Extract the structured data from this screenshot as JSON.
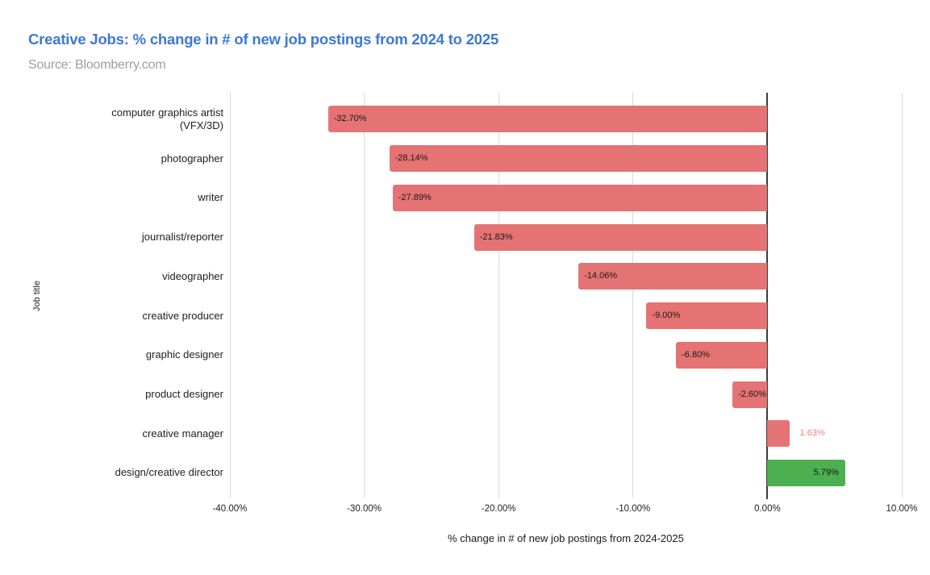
{
  "title": "Creative Jobs: % change in # of new job postings from 2024 to 2025",
  "source": "Source: Bloomberry.com",
  "colors": {
    "title": "#3d78d8",
    "source": "#9e9e9e",
    "negative_bar": "#e57373",
    "highlight_bar": "#4caf50",
    "outside_label": "#e8807f",
    "inside_label": "#1a1a1a",
    "gridline": "#d9d9d9",
    "zero_line": "#3c3c3c"
  },
  "chart_data": {
    "type": "bar",
    "orientation": "horizontal",
    "title": "Creative Jobs: % change in # of new job postings from 2024 to 2025",
    "subtitle": "Source: Bloomberry.com",
    "xlabel": "% change in # of new job postings from 2024-2025",
    "ylabel": "Job title",
    "xlim": [
      -40,
      10
    ],
    "grid": true,
    "legend": false,
    "xticks": {
      "values": [
        -40,
        -30,
        -20,
        -10,
        0,
        10
      ],
      "labels": [
        "-40.00%",
        "-30.00%",
        "-20.00%",
        "-10.00%",
        "0.00%",
        "10.00%"
      ]
    },
    "categories": [
      "computer graphics artist (VFX/3D)",
      "photographer",
      "writer",
      "journalist/reporter",
      "videographer",
      "creative producer",
      "graphic designer",
      "product designer",
      "creative manager",
      "design/creative director"
    ],
    "values": [
      -32.7,
      -28.14,
      -27.89,
      -21.83,
      -14.06,
      -9.0,
      -6.8,
      -2.6,
      1.63,
      5.79
    ],
    "bars": [
      {
        "category": "computer graphics artist (VFX/3D)",
        "value": -32.7,
        "label": "-32.70%",
        "color": "#e57373",
        "label_pos": "inside-start",
        "label_color": "#1a1a1a"
      },
      {
        "category": "photographer",
        "value": -28.14,
        "label": "-28.14%",
        "color": "#e57373",
        "label_pos": "inside-start",
        "label_color": "#1a1a1a"
      },
      {
        "category": "writer",
        "value": -27.89,
        "label": "-27.89%",
        "color": "#e57373",
        "label_pos": "inside-start",
        "label_color": "#1a1a1a"
      },
      {
        "category": "journalist/reporter",
        "value": -21.83,
        "label": "-21.83%",
        "color": "#e57373",
        "label_pos": "inside-start",
        "label_color": "#1a1a1a"
      },
      {
        "category": "videographer",
        "value": -14.06,
        "label": "-14.06%",
        "color": "#e57373",
        "label_pos": "inside-start",
        "label_color": "#1a1a1a"
      },
      {
        "category": "creative producer",
        "value": -9.0,
        "label": "-9.00%",
        "color": "#e57373",
        "label_pos": "inside-start",
        "label_color": "#1a1a1a"
      },
      {
        "category": "graphic designer",
        "value": -6.8,
        "label": "-6.80%",
        "color": "#e57373",
        "label_pos": "inside-start",
        "label_color": "#1a1a1a"
      },
      {
        "category": "product designer",
        "value": -2.6,
        "label": "-2.60%",
        "color": "#e57373",
        "label_pos": "inside-start",
        "label_color": "#1a1a1a"
      },
      {
        "category": "creative manager",
        "value": 1.63,
        "label": "1.63%",
        "color": "#e57373",
        "label_pos": "outside-end",
        "label_color": "#e8807f"
      },
      {
        "category": "design/creative director",
        "value": 5.79,
        "label": "5.79%",
        "color": "#4caf50",
        "label_pos": "inside-end",
        "label_color": "#1a1a1a"
      }
    ]
  }
}
